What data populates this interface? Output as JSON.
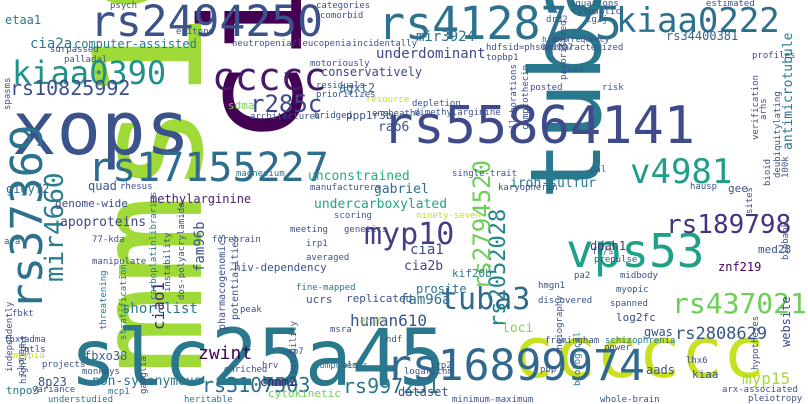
{
  "words": [
    {
      "text": "cia",
      "color": "#440154"
    },
    {
      "text": "mms19",
      "color": "#a0da39"
    },
    {
      "text": "tuba6",
      "color": "#2a788e"
    },
    {
      "text": "xops",
      "color": "#3b528b"
    },
    {
      "text": "slc25a45",
      "color": "#2a788e"
    },
    {
      "text": "cccccc",
      "color": "#c8e020"
    },
    {
      "text": "rs55864141",
      "color": "#3e4a89"
    },
    {
      "text": "rs2494250",
      "color": "#3b528b"
    },
    {
      "text": "rs4128725",
      "color": "#2c728e"
    },
    {
      "text": "rs17155227",
      "color": "#2f6c8e"
    },
    {
      "text": "rs16899974",
      "color": "#30688e"
    },
    {
      "text": "ccccc",
      "color": "#48186a"
    },
    {
      "text": "vps53",
      "color": "#1fa187"
    },
    {
      "text": "kiaa0390",
      "color": "#21918c"
    },
    {
      "text": "kiaa0222",
      "color": "#2d708e"
    },
    {
      "text": "rs37369",
      "color": "#2c728e"
    },
    {
      "text": "tuba3",
      "color": "#31688e"
    },
    {
      "text": "v4981",
      "color": "#1f9e89"
    },
    {
      "text": "myp10",
      "color": "#433e85"
    },
    {
      "text": "rs10825992",
      "color": "#3b528b"
    },
    {
      "text": "r285c",
      "color": "#3e4989"
    },
    {
      "text": "mir4660",
      "color": "#277f8e"
    },
    {
      "text": "rs2052028",
      "color": "#25858e"
    },
    {
      "text": "rs2794520",
      "color": "#6ece58"
    },
    {
      "text": "rs437021",
      "color": "#6ece58"
    },
    {
      "text": "rs189798",
      "color": "#46327e"
    },
    {
      "text": "rs3107503",
      "color": "#2e6e8e"
    },
    {
      "text": "rs997251",
      "color": "#2c738e"
    },
    {
      "text": "zwint",
      "color": "#440154"
    },
    {
      "text": "human610",
      "color": "#3b528b"
    },
    {
      "text": "underdominant",
      "color": "#3e4a89"
    },
    {
      "text": "rs34400381",
      "color": "#33638d"
    },
    {
      "text": "rs2808629",
      "color": "#38588c"
    },
    {
      "text": "myp15",
      "color": "#a5db36"
    },
    {
      "text": "mir3924",
      "color": "#2d718e"
    },
    {
      "text": "cia2a",
      "color": "#2a788e"
    },
    {
      "text": "etaa1",
      "color": "#2a788e"
    },
    {
      "text": "computer-assisted",
      "color": "#2a788e"
    },
    {
      "text": "gigyf2",
      "color": "#2f6b8e"
    },
    {
      "text": "quad",
      "color": "#365c8d"
    },
    {
      "text": "genome-wide",
      "color": "#3e4a89"
    },
    {
      "text": "sdma",
      "color": "#7ad151"
    },
    {
      "text": "rab6",
      "color": "#3b528b"
    },
    {
      "text": "agxt2",
      "color": "#2c728e"
    },
    {
      "text": "conservatively",
      "color": "#3f4788"
    },
    {
      "text": "unconstrained",
      "color": "#27ad81"
    },
    {
      "text": "gabriel",
      "color": "#2e6e8e"
    },
    {
      "text": "iron-sulfur",
      "color": "#2a788e"
    },
    {
      "text": "methylarginine",
      "color": "#481f70"
    },
    {
      "text": "apoproteins",
      "color": "#3f4788"
    },
    {
      "text": "undercarboxylated",
      "color": "#20a386"
    },
    {
      "text": "fam96b",
      "color": "#3b528b"
    },
    {
      "text": "cia2b",
      "color": "#3f4788"
    },
    {
      "text": "cia1",
      "color": "#3e4a89"
    },
    {
      "text": "fam96a",
      "color": "#2e6e8e"
    },
    {
      "text": "ciao1",
      "color": "#482878"
    },
    {
      "text": "shortlist",
      "color": "#2a788e"
    },
    {
      "text": "fbxo38",
      "color": "#33638d"
    },
    {
      "text": "non-synonymous",
      "color": "#2c728e"
    },
    {
      "text": "8p23",
      "color": "#3b528b"
    },
    {
      "text": "cnnm2",
      "color": "#481467"
    },
    {
      "text": "cytokinetic",
      "color": "#6ece58"
    },
    {
      "text": "dataset",
      "color": "#3b528b"
    },
    {
      "text": "prosite",
      "color": "#2c728e"
    },
    {
      "text": "gwas",
      "color": "#3b528b"
    },
    {
      "text": "log2fc",
      "color": "#3e4a89"
    },
    {
      "text": "znf219",
      "color": "#440154"
    },
    {
      "text": "website",
      "color": "#3e4a89"
    },
    {
      "text": "aads",
      "color": "#3b528b"
    },
    {
      "text": "kiaa",
      "color": "#3b528b"
    },
    {
      "text": "gee",
      "color": "#3b528b"
    },
    {
      "text": "med28",
      "color": "#3b528b"
    },
    {
      "text": "ddah1",
      "color": "#46327e"
    },
    {
      "text": "ppp1r3b",
      "color": "#3b528b"
    },
    {
      "text": "antimicrotubule",
      "color": "#2a788e"
    },
    {
      "text": "tnpo3",
      "color": "#2a788e"
    },
    {
      "text": "loci",
      "color": "#84d44b"
    },
    {
      "text": "kif20b",
      "color": "#2a788e"
    },
    {
      "text": "hiv-dependency",
      "color": "#3b528b"
    },
    {
      "text": "ucrs",
      "color": "#3b528b"
    },
    {
      "text": "replicated",
      "color": "#3b528b"
    },
    {
      "text": "fine-mapped",
      "color": "#2a788e"
    },
    {
      "text": "carboplatinlibraries",
      "color": "#2a788e"
    },
    {
      "text": "pharmacogenomics",
      "color": "#3b528b"
    },
    {
      "text": "potentialities",
      "color": "#3b528b"
    },
    {
      "text": "threatening",
      "color": "#2a788e"
    },
    {
      "text": "stratification",
      "color": "#2a788e"
    },
    {
      "text": "highlight",
      "color": "#3b528b"
    },
    {
      "text": "variance",
      "color": "#3b528b"
    },
    {
      "text": "understudied",
      "color": "#2a788e"
    },
    {
      "text": "heritable",
      "color": "#2a788e"
    },
    {
      "text": "projects",
      "color": "#3b528b"
    },
    {
      "text": "monkeys",
      "color": "#3b528b"
    },
    {
      "text": "mcp1",
      "color": "#2a788e"
    },
    {
      "text": "ganglia",
      "color": "#3b528b"
    },
    {
      "text": "hrv",
      "color": "#3b528b"
    },
    {
      "text": "enriched",
      "color": "#3b528b"
    },
    {
      "text": "components",
      "color": "#2a788e"
    },
    {
      "text": "logarithm",
      "color": "#3b528b"
    },
    {
      "text": "minimum-maximum",
      "color": "#3b528b"
    },
    {
      "text": "whole-brain",
      "color": "#3b528b"
    },
    {
      "text": "arx-associated",
      "color": "#3b528b"
    },
    {
      "text": "pleiotropy",
      "color": "#3b528b"
    },
    {
      "text": "framingham",
      "color": "#3b528b"
    },
    {
      "text": "schizophrenia",
      "color": "#2a788e"
    },
    {
      "text": "angiography",
      "color": "#3b528b"
    },
    {
      "text": "biological",
      "color": "#2a788e"
    },
    {
      "text": "discovered",
      "color": "#3b528b"
    },
    {
      "text": "spanned",
      "color": "#3b528b"
    },
    {
      "text": "myopic",
      "color": "#3b528b"
    },
    {
      "text": "midbody",
      "color": "#3b528b"
    },
    {
      "text": "hypotheses",
      "color": "#3b528b"
    },
    {
      "text": "lhx6",
      "color": "#3b528b"
    },
    {
      "text": "prepulse",
      "color": "#3b528b"
    },
    {
      "text": "neutropenia/leucopenia",
      "color": "#3b528b"
    },
    {
      "text": "incidentally",
      "color": "#3b528b"
    },
    {
      "text": "motoriously",
      "color": "#3b528b"
    },
    {
      "text": "residuals",
      "color": "#3b528b"
    },
    {
      "text": "prioritizes",
      "color": "#3b528b"
    },
    {
      "text": "architectures",
      "color": "#3b528b"
    },
    {
      "text": "bridged",
      "color": "#3b528b"
    },
    {
      "text": "ensheathe",
      "color": "#3b528b"
    },
    {
      "text": "depletion",
      "color": "#3b528b"
    },
    {
      "text": "dimethylarginine",
      "color": "#3b528b"
    },
    {
      "text": "collaborations",
      "color": "#3b528b"
    },
    {
      "text": "camptothecin",
      "color": "#3b528b"
    },
    {
      "text": "karyopherin",
      "color": "#3b528b"
    },
    {
      "text": "single-trait",
      "color": "#3b528b"
    },
    {
      "text": "magnesium",
      "color": "#2a788e"
    },
    {
      "text": "manufacturers",
      "color": "#3b528b"
    },
    {
      "text": "rhesus",
      "color": "#3b528b"
    },
    {
      "text": "scoring",
      "color": "#3b528b"
    },
    {
      "text": "meeting",
      "color": "#3b528b"
    },
    {
      "text": "genetics",
      "color": "#3b528b"
    },
    {
      "text": "averaged",
      "color": "#3b528b"
    },
    {
      "text": "irp1",
      "color": "#3b528b"
    },
    {
      "text": "draft",
      "color": "#a5db36"
    },
    {
      "text": "peak",
      "color": "#3b528b"
    },
    {
      "text": "instability",
      "color": "#3b528b"
    },
    {
      "text": "dos-polyacrylamide",
      "color": "#3b528b"
    },
    {
      "text": "independently",
      "color": "#3b528b"
    },
    {
      "text": "clones",
      "color": "#3b528b"
    },
    {
      "text": "plausibility",
      "color": "#3b528b"
    },
    {
      "text": "prioritized",
      "color": "#3b528b"
    },
    {
      "text": "uncharacterized",
      "color": "#3b528b"
    },
    {
      "text": "cytosolic",
      "color": "#3b528b"
    },
    {
      "text": "equations",
      "color": "#3b528b"
    },
    {
      "text": "hdfs",
      "color": "#3b528b"
    },
    {
      "text": "topbp1",
      "color": "#3b528b"
    },
    {
      "text": "id=phs000007",
      "color": "#3b528b"
    },
    {
      "text": "high-frequency",
      "color": "#3b528b"
    },
    {
      "text": "profiles",
      "color": "#3b528b"
    },
    {
      "text": "risk",
      "color": "#3b528b"
    },
    {
      "text": "gnas",
      "color": "#3b528b"
    },
    {
      "text": "posted",
      "color": "#3b528b"
    },
    {
      "text": "tmp",
      "color": "#3b528b"
    },
    {
      "text": "categories",
      "color": "#3b528b"
    },
    {
      "text": "comorbid",
      "color": "#3b528b"
    },
    {
      "text": "estimated",
      "color": "#3b528b"
    },
    {
      "text": "surpassed",
      "color": "#3b528b"
    },
    {
      "text": "palladal",
      "color": "#3b528b"
    },
    {
      "text": "spasms",
      "color": "#3b528b"
    },
    {
      "text": "manipulate",
      "color": "#3b528b"
    },
    {
      "text": "ninety-seven",
      "color": "#c8e020"
    },
    {
      "text": "resource",
      "color": "#c8e020"
    },
    {
      "text": "fbxt",
      "color": "#3b528b"
    },
    {
      "text": "adma",
      "color": "#3b528b"
    },
    {
      "text": "qtls",
      "color": "#3b528b"
    },
    {
      "text": "myopia",
      "color": "#c8e020"
    },
    {
      "text": "hausp",
      "color": "#3b528b"
    },
    {
      "text": "pa2",
      "color": "#3b528b"
    },
    {
      "text": "fe/s",
      "color": "#3b528b"
    },
    {
      "text": "hmgn1",
      "color": "#3b528b"
    },
    {
      "text": "usp7",
      "color": "#3b528b"
    },
    {
      "text": "ols",
      "color": "#3b528b"
    },
    {
      "text": "irp2",
      "color": "#3b528b"
    },
    {
      "text": "hdf",
      "color": "#3b528b"
    },
    {
      "text": "pbp",
      "color": "#3b528b"
    },
    {
      "text": "msra",
      "color": "#3b528b"
    },
    {
      "text": "fbkt",
      "color": "#3b528b"
    },
    {
      "text": "a.a",
      "color": "#3b528b"
    },
    {
      "text": "biobank",
      "color": "#3b528b"
    },
    {
      "text": "100k",
      "color": "#3b528b"
    },
    {
      "text": "power",
      "color": "#3b528b"
    },
    {
      "text": "drd2",
      "color": "#3b528b"
    },
    {
      "text": "lg/j",
      "color": "#3b528b"
    },
    {
      "text": "pal",
      "color": "#3b528b"
    },
    {
      "text": "arhs",
      "color": "#3b528b"
    },
    {
      "text": "psych",
      "color": "#3b528b"
    },
    {
      "text": "forebrain",
      "color": "#3b528b"
    },
    {
      "text": "epitope",
      "color": "#3b528b"
    },
    {
      "text": "sites",
      "color": "#3b528b"
    },
    {
      "text": "verification",
      "color": "#3b528b"
    },
    {
      "text": "deubiquitylating",
      "color": "#3b528b"
    },
    {
      "text": "bioid",
      "color": "#3b528b"
    },
    {
      "text": "77-kda",
      "color": "#3b528b"
    },
    {
      "text": "alfafa",
      "color": "#3b528b"
    }
  ]
}
